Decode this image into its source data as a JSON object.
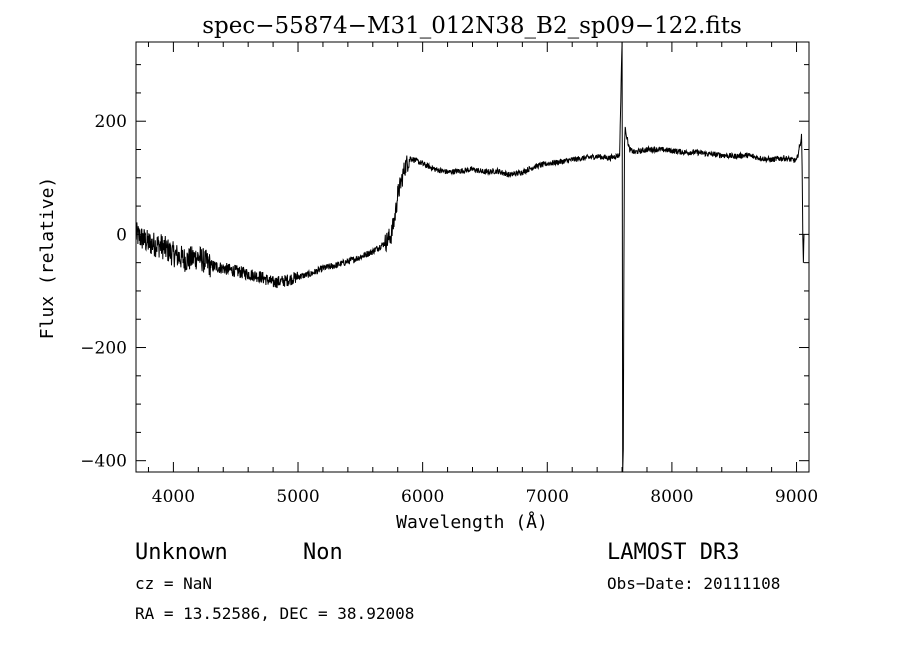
{
  "chart_data": {
    "type": "line",
    "title": "spec−55874−M31_012N38_B2_sp09−122.fits",
    "xlabel": "Wavelength (Å)",
    "ylabel": "Flux (relative)",
    "xlim": [
      3700,
      9100
    ],
    "ylim": [
      -420,
      340
    ],
    "x_ticks": [
      4000,
      5000,
      6000,
      7000,
      8000,
      9000
    ],
    "x_tick_labels": [
      "4000",
      "5000",
      "6000",
      "7000",
      "8000",
      "9000"
    ],
    "y_ticks": [
      -400,
      -200,
      0,
      200
    ],
    "y_tick_labels": [
      "−400",
      "−200",
      "0",
      "200"
    ],
    "grid": false,
    "series": [
      {
        "x": [
          3700,
          3800,
          3900,
          4000,
          4100,
          4200,
          4300,
          4400,
          4500,
          4600,
          4700,
          4800,
          4900,
          5000,
          5100,
          5200,
          5300,
          5400,
          5500,
          5600,
          5700,
          5750,
          5780,
          5800,
          5830,
          5860,
          5900,
          6000,
          6100,
          6200,
          6300,
          6400,
          6500,
          6600,
          6700,
          6800,
          6900,
          7000,
          7100,
          7200,
          7300,
          7400,
          7500,
          7580,
          7600,
          7605,
          7610,
          7615,
          7620,
          7625,
          7640,
          7660,
          7700,
          7800,
          7900,
          8000,
          8100,
          8200,
          8300,
          8400,
          8500,
          8600,
          8700,
          8800,
          8900,
          9000,
          9030,
          9040,
          9045,
          9050,
          9055,
          9060
        ],
        "y": [
          0,
          -15,
          -20,
          -35,
          -45,
          -40,
          -55,
          -60,
          -65,
          -70,
          -75,
          -85,
          -82,
          -75,
          -70,
          -60,
          -55,
          -48,
          -40,
          -30,
          -15,
          0,
          35,
          70,
          95,
          120,
          135,
          125,
          115,
          110,
          112,
          115,
          110,
          112,
          105,
          110,
          120,
          125,
          128,
          132,
          135,
          138,
          135,
          140,
          340,
          -420,
          -380,
          -60,
          160,
          190,
          170,
          150,
          145,
          150,
          150,
          148,
          145,
          145,
          142,
          140,
          138,
          140,
          135,
          132,
          135,
          130,
          160,
          175,
          120,
          0,
          -50,
          0
        ]
      }
    ],
    "annotations": {
      "object_class": "Unknown",
      "object_subclass": "Non",
      "survey": "LAMOST DR3",
      "redshift": "cz = NaN",
      "obs_date": "Obs−Date: 20111108",
      "coordinates": "RA =  13.52586, DEC =  38.92008"
    }
  }
}
